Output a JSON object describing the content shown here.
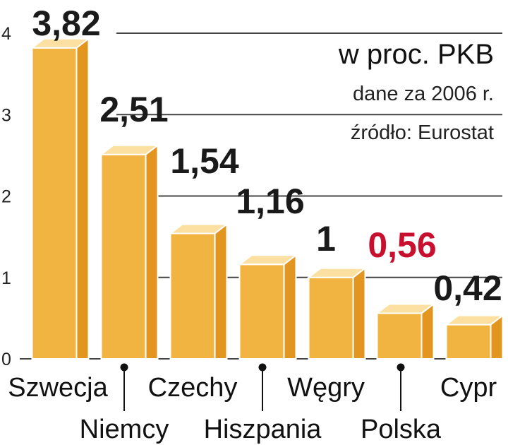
{
  "chart_data": {
    "type": "bar",
    "categories": [
      "Szwecja",
      "Niemcy",
      "Czechy",
      "Hiszpania",
      "Węgry",
      "Polska",
      "Cypr"
    ],
    "values": [
      3.82,
      2.51,
      1.54,
      1.16,
      1,
      0.56,
      0.42
    ],
    "value_labels": [
      "3,82",
      "2,51",
      "1,54",
      "1,16",
      "1",
      "0,56",
      "0,42"
    ],
    "highlight_category": "Polska",
    "ylim": [
      0,
      4
    ],
    "yticks": [
      0,
      1,
      2,
      3,
      4
    ],
    "grid": true,
    "title": "w proc. PKB",
    "subtitle": "dane za 2006 r.",
    "source": "źródło: Eurostat",
    "xlabel": "",
    "ylabel": ""
  },
  "colors": {
    "bar_front": "#f2b441",
    "bar_side": "#e2951f",
    "bar_top": "#fbe0a2",
    "bar_edge": "#ffffff",
    "grid": "#444444",
    "value_text": "#1a1a1a",
    "highlight_text": "#c8102e"
  }
}
